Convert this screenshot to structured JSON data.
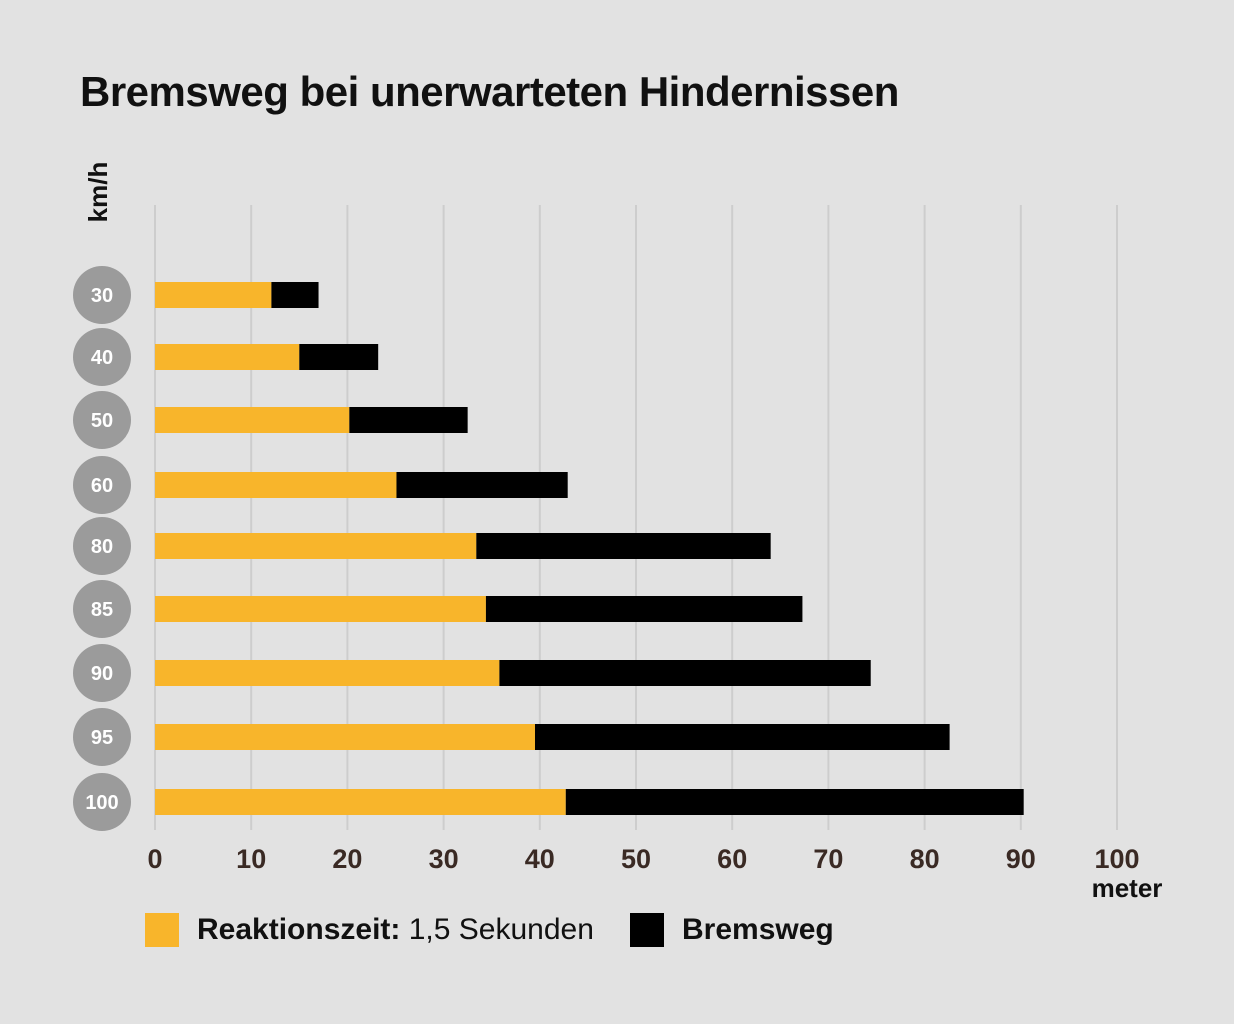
{
  "title": "Bremsweg bei unerwarteten Hindernissen",
  "colors": {
    "background": "#e2e2e2",
    "reaction": "#f8b52b",
    "braking": "#000000",
    "badge": "#9b9b9b",
    "grid": "#cdcdcd",
    "tick": "#3a2a24"
  },
  "legend": {
    "reaction_bold": "Reaktionszeit:",
    "reaction_rest": " 1,5 Sekunden",
    "braking": "Bremsweg"
  },
  "chart_data": {
    "type": "bar",
    "orientation": "horizontal",
    "stacked": true,
    "title": "Bremsweg bei unerwarteten Hindernissen",
    "ylabel": "km/h",
    "xlabel": "meter",
    "xlim": [
      0,
      100
    ],
    "xticks": [
      0,
      10,
      20,
      30,
      40,
      50,
      60,
      70,
      80,
      90,
      100
    ],
    "grid": true,
    "categories": [
      "30",
      "40",
      "50",
      "60",
      "80",
      "85",
      "90",
      "95",
      "100"
    ],
    "series": [
      {
        "name": "Reaktionszeit: 1,5 Sekunden",
        "values": [
          12.1,
          15.0,
          20.2,
          25.1,
          33.4,
          34.4,
          35.8,
          39.5,
          42.7
        ]
      },
      {
        "name": "Bremsweg",
        "values": [
          4.9,
          8.2,
          12.3,
          17.8,
          30.6,
          32.9,
          38.6,
          43.1,
          47.6
        ]
      }
    ]
  }
}
